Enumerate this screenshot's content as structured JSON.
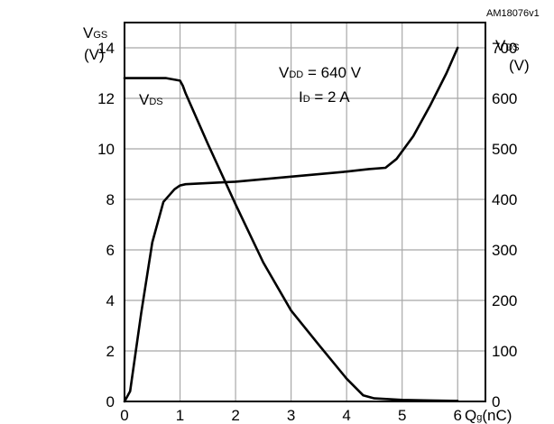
{
  "chart_data": {
    "type": "line",
    "code": "AM18076v1",
    "annotation": {
      "vdd_main": "V",
      "vdd_sub": "DD",
      "vdd_value": " = 640 V",
      "id_main": "I",
      "id_sub": "D",
      "id_value": " = 2 A"
    },
    "left_axis": {
      "label_main": "V",
      "label_sub": "GS",
      "unit": "(V)",
      "range": [
        0,
        15
      ],
      "ticks": [
        0,
        2,
        4,
        6,
        8,
        10,
        12,
        14
      ]
    },
    "right_axis": {
      "label_main": "V",
      "label_sub": "DS",
      "unit": "(V)",
      "range": [
        0,
        750
      ],
      "ticks": [
        0,
        100,
        200,
        300,
        400,
        500,
        600,
        700
      ]
    },
    "x_axis": {
      "label_main": "Q",
      "label_sub": "g",
      "label_unit": "(nC)",
      "range": [
        0,
        6.5
      ],
      "ticks": [
        0,
        1,
        2,
        3,
        4,
        5,
        6
      ]
    },
    "grid": true,
    "series": [
      {
        "name_main": "V",
        "name_sub": "DS",
        "axis": "right",
        "points": [
          [
            0,
            640
          ],
          [
            0.5,
            640
          ],
          [
            0.75,
            640
          ],
          [
            1.0,
            635
          ],
          [
            1.05,
            625
          ],
          [
            1.1,
            610
          ],
          [
            1.5,
            510
          ],
          [
            2.0,
            390
          ],
          [
            2.5,
            275
          ],
          [
            3.0,
            180
          ],
          [
            3.5,
            112
          ],
          [
            4.0,
            45
          ],
          [
            4.3,
            12
          ],
          [
            4.5,
            6
          ],
          [
            5.0,
            3
          ],
          [
            5.5,
            2
          ],
          [
            6.0,
            1
          ]
        ]
      },
      {
        "name": "",
        "axis": "left",
        "points": [
          [
            0,
            0
          ],
          [
            0.1,
            0.4
          ],
          [
            0.3,
            3.5
          ],
          [
            0.5,
            6.3
          ],
          [
            0.7,
            7.9
          ],
          [
            0.9,
            8.4
          ],
          [
            1.0,
            8.55
          ],
          [
            1.1,
            8.6
          ],
          [
            2.0,
            8.7
          ],
          [
            3.0,
            8.9
          ],
          [
            4.0,
            9.1
          ],
          [
            4.4,
            9.2
          ],
          [
            4.7,
            9.25
          ],
          [
            4.9,
            9.6
          ],
          [
            5.2,
            10.5
          ],
          [
            5.5,
            11.7
          ],
          [
            5.8,
            13.0
          ],
          [
            6.0,
            14.0
          ]
        ]
      }
    ]
  }
}
